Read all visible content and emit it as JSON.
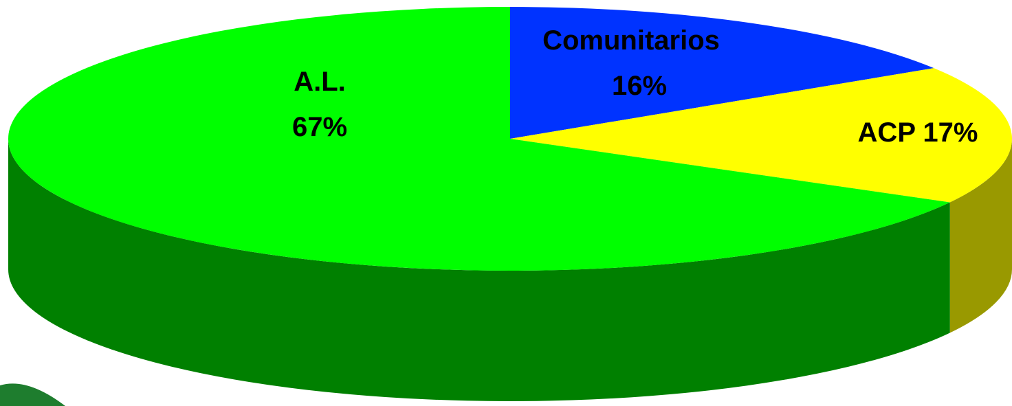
{
  "chart_data": {
    "type": "pie",
    "style": "3d",
    "slices": [
      {
        "name": "A.L.",
        "value": 67,
        "label_line1": "A.L.",
        "label_line2": "67%",
        "color": "#00ff00",
        "side_color": "#008000"
      },
      {
        "name": "Comunitarios",
        "value": 16,
        "label_line1": "Comunitarios",
        "label_line2": "16%",
        "color": "#0033ff",
        "side_color": "#001a99"
      },
      {
        "name": "ACP",
        "value": 17,
        "label_line1": "ACP 17%",
        "label_line2": "",
        "color": "#ffff00",
        "side_color": "#999900"
      }
    ],
    "legend": "none",
    "title": ""
  }
}
